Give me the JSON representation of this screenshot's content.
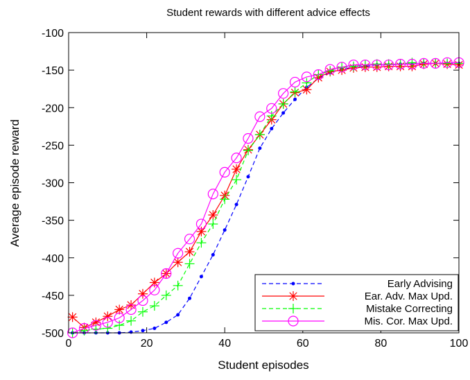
{
  "chart_data": {
    "type": "line",
    "title": "Student rewards with different advice effects",
    "xlabel": "Student episodes",
    "ylabel": "Average episode reward",
    "xlim": [
      0,
      100
    ],
    "ylim": [
      -500,
      -100
    ],
    "x_ticks": [
      0,
      20,
      40,
      60,
      80,
      100
    ],
    "y_ticks": [
      -500,
      -450,
      -400,
      -350,
      -300,
      -250,
      -200,
      -150,
      -100
    ],
    "x_tick_labels": [
      "0",
      "20",
      "40",
      "60",
      "80",
      "100"
    ],
    "y_tick_labels": [
      "-500",
      "-450",
      "-400",
      "-350",
      "-300",
      "-250",
      "-200",
      "-150",
      "-100"
    ],
    "grid": false,
    "legend_position": "bottom-right",
    "series": [
      {
        "name": "Early Advising",
        "color": "#0000ff",
        "line_style": "dashed",
        "marker": "dot",
        "x": [
          1,
          4,
          7,
          10,
          13,
          16,
          19,
          22,
          25,
          28,
          31,
          34,
          37,
          40,
          43,
          46,
          49,
          52,
          55,
          58,
          61,
          64,
          67,
          70,
          73,
          76,
          79,
          82,
          85,
          88,
          91,
          94,
          97,
          100
        ],
        "y": [
          -500,
          -500,
          -500,
          -500,
          -500,
          -499,
          -497,
          -494,
          -486,
          -476,
          -454,
          -425,
          -396,
          -363,
          -329,
          -292,
          -254,
          -228,
          -207,
          -189,
          -173,
          -161,
          -153,
          -149,
          -146,
          -145,
          -143,
          -143,
          -142,
          -142,
          -141,
          -141,
          -141,
          -141
        ]
      },
      {
        "name": "Ear. Adv. Max Upd.",
        "color": "#ff0000",
        "line_style": "solid",
        "marker": "star",
        "x": [
          1,
          4,
          7,
          10,
          13,
          16,
          19,
          22,
          25,
          28,
          31,
          34,
          37,
          40,
          43,
          46,
          49,
          52,
          55,
          58,
          61,
          64,
          67,
          70,
          73,
          76,
          79,
          82,
          85,
          88,
          91,
          94,
          97,
          100
        ],
        "y": [
          -479,
          -493,
          -486,
          -478,
          -469,
          -463,
          -448,
          -433,
          -421,
          -406,
          -392,
          -365,
          -343,
          -317,
          -282,
          -256,
          -236,
          -216,
          -195,
          -180,
          -176,
          -160,
          -152,
          -150,
          -147,
          -146,
          -146,
          -145,
          -145,
          -145,
          -142,
          -141,
          -142,
          -143
        ]
      },
      {
        "name": "Mistake Correcting",
        "color": "#00ff00",
        "line_style": "dashed",
        "marker": "plus",
        "x": [
          1,
          4,
          7,
          10,
          13,
          16,
          19,
          22,
          25,
          28,
          31,
          34,
          37,
          40,
          43,
          46,
          49,
          52,
          55,
          58,
          61,
          64,
          67,
          70,
          73,
          76,
          79,
          82,
          85,
          88,
          91,
          94,
          97,
          100
        ],
        "y": [
          -500,
          -497,
          -495,
          -494,
          -490,
          -484,
          -472,
          -464,
          -450,
          -437,
          -408,
          -380,
          -355,
          -322,
          -296,
          -257,
          -236,
          -211,
          -195,
          -179,
          -167,
          -156,
          -151,
          -146,
          -145,
          -143,
          -142,
          -142,
          -142,
          -140,
          -141,
          -141,
          -141,
          -141
        ]
      },
      {
        "name": "Mis. Cor. Max Upd.",
        "color": "#ff00ff",
        "line_style": "solid",
        "marker": "circle",
        "x": [
          1,
          4,
          7,
          10,
          13,
          16,
          19,
          22,
          25,
          28,
          31,
          34,
          37,
          40,
          43,
          46,
          49,
          52,
          55,
          58,
          61,
          64,
          67,
          70,
          73,
          76,
          79,
          82,
          85,
          88,
          91,
          94,
          97,
          100
        ],
        "y": [
          -500,
          -494,
          -490,
          -486,
          -480,
          -469,
          -457,
          -443,
          -421,
          -394,
          -375,
          -355,
          -315,
          -286,
          -267,
          -241,
          -212,
          -201,
          -181,
          -166,
          -159,
          -156,
          -149,
          -146,
          -143,
          -143,
          -143,
          -143,
          -142,
          -142,
          -141,
          -141,
          -140,
          -140
        ]
      }
    ]
  }
}
